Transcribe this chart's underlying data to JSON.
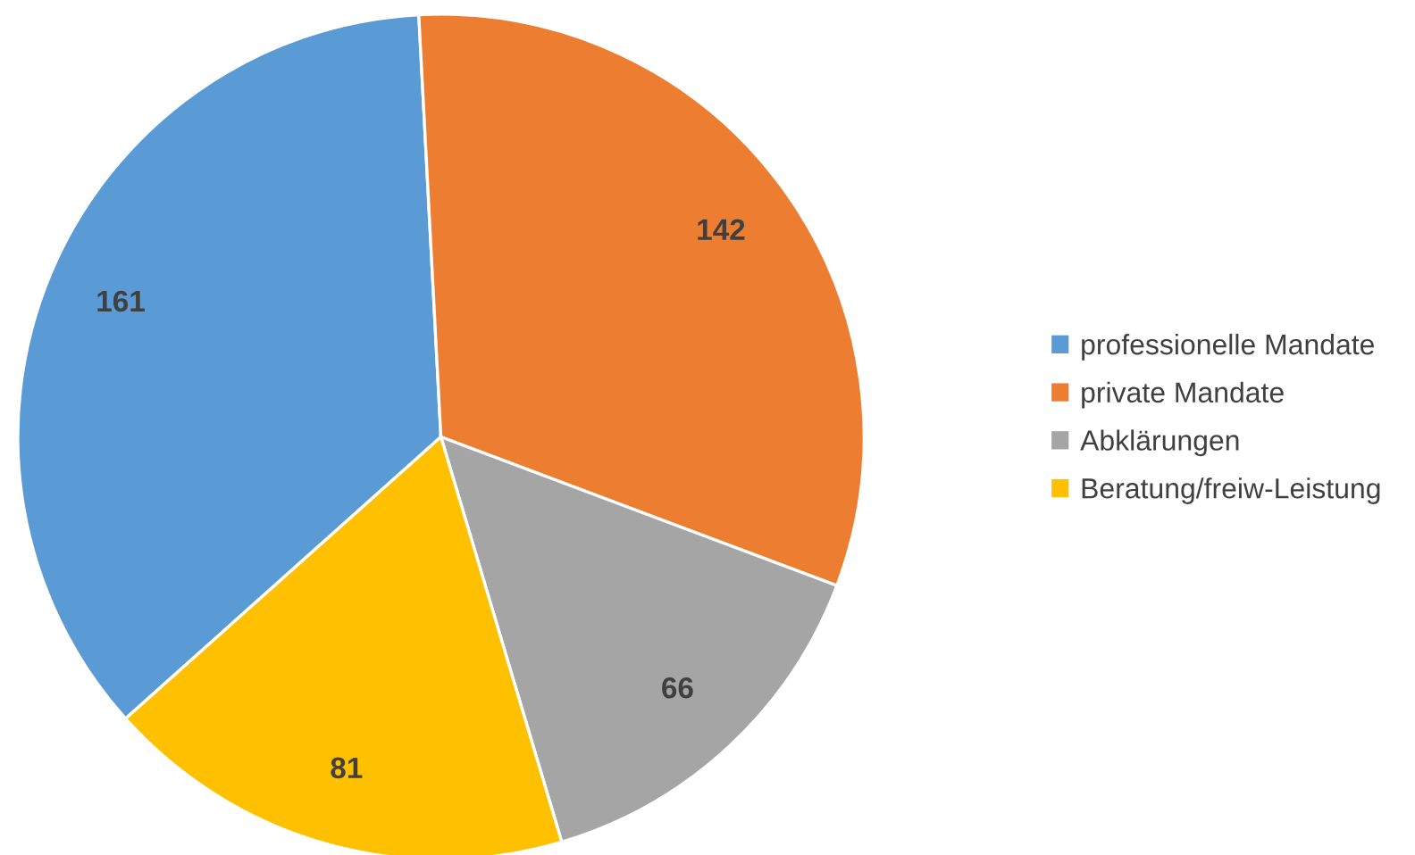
{
  "chart_data": {
    "type": "pie",
    "categories": [
      "professionelle Mandate",
      "private Mandate",
      "Abklärungen",
      "Beratung/freiw-Leistung"
    ],
    "values": [
      161,
      142,
      66,
      81
    ],
    "colors": [
      "#5b9bd5",
      "#ed7d31",
      "#a5a5a5",
      "#ffc000"
    ],
    "data_labels": true,
    "legend": "right"
  }
}
